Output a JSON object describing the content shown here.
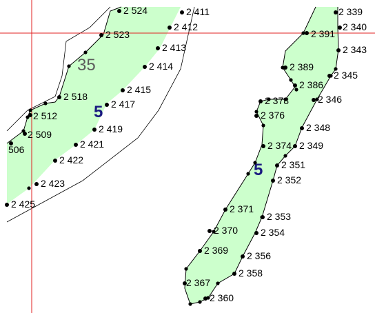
{
  "colors": {
    "parcel_fill": "#ccffcc",
    "parcel_outline": "#000000",
    "crosshair": "#e02020",
    "point": "#000000",
    "parcel_label": "#1a1a80",
    "zone_label": "#5a5a5a"
  },
  "zone_label": "35",
  "parcel_labels": [
    "5",
    "5"
  ],
  "points": [
    {
      "id": "p2524",
      "label": "2 524"
    },
    {
      "id": "p2411",
      "label": "2 411"
    },
    {
      "id": "p2412",
      "label": "2 412"
    },
    {
      "id": "p2523",
      "label": "2 523"
    },
    {
      "id": "p2413",
      "label": "2 413"
    },
    {
      "id": "p2414",
      "label": "2 414"
    },
    {
      "id": "p2415",
      "label": "2 415"
    },
    {
      "id": "p2518",
      "label": "2 518"
    },
    {
      "id": "p2417",
      "label": "2 417"
    },
    {
      "id": "p2512",
      "label": "2 512"
    },
    {
      "id": "p2419",
      "label": "2 419"
    },
    {
      "id": "p2509",
      "label": "2 509"
    },
    {
      "id": "p506",
      "label": "506"
    },
    {
      "id": "p2421",
      "label": "2 421"
    },
    {
      "id": "p2422",
      "label": "2 422"
    },
    {
      "id": "p2423",
      "label": "2 423"
    },
    {
      "id": "p2425",
      "label": "2 425"
    },
    {
      "id": "p2339",
      "label": "2 339"
    },
    {
      "id": "p2340",
      "label": "2 340"
    },
    {
      "id": "p2391",
      "label": "2 391"
    },
    {
      "id": "p2343",
      "label": "2 343"
    },
    {
      "id": "p2389",
      "label": "2 389"
    },
    {
      "id": "p2345",
      "label": "2 345"
    },
    {
      "id": "p2386",
      "label": "2 386"
    },
    {
      "id": "p2378",
      "label": "2 378"
    },
    {
      "id": "p2346",
      "label": "2 346"
    },
    {
      "id": "p2376",
      "label": "2 376"
    },
    {
      "id": "p2348",
      "label": "2 348"
    },
    {
      "id": "p2374",
      "label": "2 374"
    },
    {
      "id": "p2349",
      "label": "2 349"
    },
    {
      "id": "p2351",
      "label": "2 351"
    },
    {
      "id": "p2352",
      "label": "2 352"
    },
    {
      "id": "p2371",
      "label": "2 371"
    },
    {
      "id": "p2353",
      "label": "2 353"
    },
    {
      "id": "p2370",
      "label": "2 370"
    },
    {
      "id": "p2354",
      "label": "2 354"
    },
    {
      "id": "p2369",
      "label": "2 369"
    },
    {
      "id": "p2356",
      "label": "2 356"
    },
    {
      "id": "p2358",
      "label": "2 358"
    },
    {
      "id": "p2367",
      "label": "2 367"
    },
    {
      "id": "p2360",
      "label": "2 360"
    }
  ]
}
